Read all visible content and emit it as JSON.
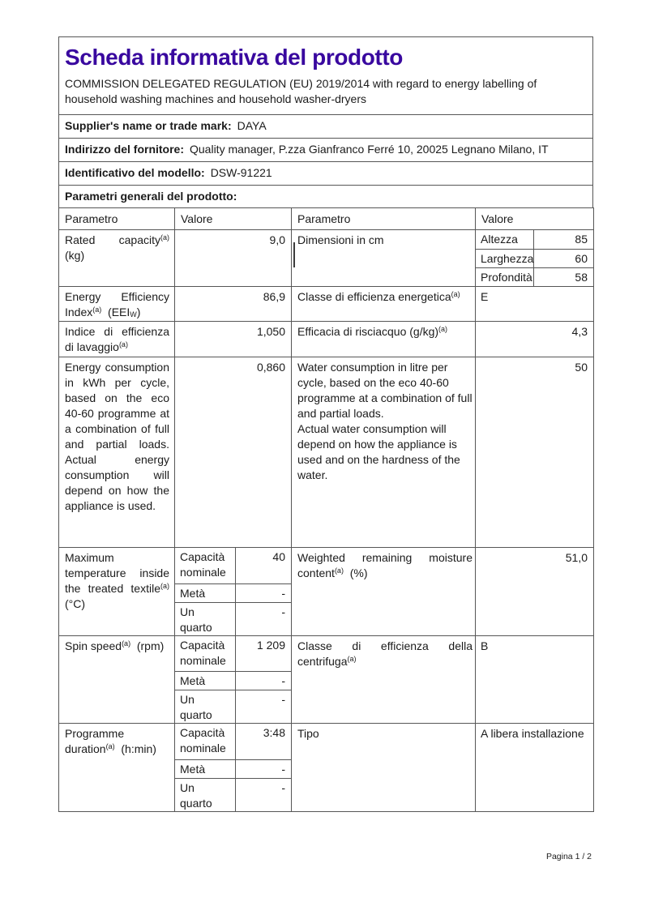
{
  "page": {
    "accent_color": "#39089f",
    "footer": "Pagina 1 / 2"
  },
  "header": {
    "title": "Scheda informativa del prodotto",
    "subtitle": "COMMISSION DELEGATED REGULATION (EU) 2019/2014 with regard to energy labelling of\nhousehold washing machines and household washer-dryers"
  },
  "info_rows": [
    {
      "label": "Supplier's name or trade mark:",
      "value": "DAYA"
    },
    {
      "label": "Indirizzo del fornitore:",
      "value": "Quality manager, P.zza Gianfranco Ferré 10, 20025 Legnano Milano, IT"
    },
    {
      "label": "Identificativo del modello:",
      "value": "DSW-91221"
    }
  ],
  "section_header": "Parametri generali del prodotto:",
  "table": {
    "column_headers": [
      "Parametro",
      "Valore",
      "Parametro",
      "Valore"
    ],
    "rows": [
      {
        "param1": "Rated capacity^{(a)} (kg)",
        "value1": "9,0",
        "param2": "Dimensioni in cm",
        "value2_rows": [
          {
            "label": "Altezza",
            "value": "85"
          },
          {
            "label": "Larghezza",
            "value": "60"
          },
          {
            "label": "Profondità",
            "value": "58"
          }
        ]
      },
      {
        "param1": "Energy Efficiency Index^{(a)}  (EEI_{W})",
        "value1": "86,9",
        "param2": "Classe di efficienza energetica^{(a)}",
        "value2": "E"
      },
      {
        "param1": "Indice di efficienza di lavaggio^{(a)}",
        "value1": "1,050",
        "param2": "Efficacia di risciacquo (g/kg)^{(a)}",
        "value2": "4,3"
      },
      {
        "param1": "Energy consumption in kWh per cycle, based on the eco 40-60 programme at a combination of full and partial loads. Actual energy consumption will depend on how the appliance is used.",
        "value1": "0,860",
        "param2": "Water consumption in litre per cycle, based on the eco 40-60 programme at a combination of full and partial loads.\nActual water consumption will depend on how the appliance is used and on the hardness of the water.",
        "value2": "50"
      },
      {
        "param1": "Maximum temperature inside the treated textile^{(a)} (°C)",
        "value1_rows": [
          {
            "label": "Capacità\nnominale",
            "value": "40"
          },
          {
            "label": "Metà",
            "value": "-"
          },
          {
            "label": "Un\nquarto",
            "value": "-"
          }
        ],
        "param2": "Weighted remaining moisture content^{(a)}  (%)",
        "value2": "51,0"
      },
      {
        "param1": "Spin speed^{(a)}  (rpm)",
        "value1_rows": [
          {
            "label": "Capacità\nnominale",
            "value": "1 209"
          },
          {
            "label": "Metà",
            "value": "-"
          },
          {
            "label": "Un\nquarto",
            "value": "-"
          }
        ],
        "param2": "Classe di efficienza della centrifuga^{(a)}",
        "value2": "B"
      },
      {
        "param1": "Programme duration^{(a)}  (h:min)",
        "value1_rows": [
          {
            "label": "Capacità\nnominale",
            "value": "3:48"
          },
          {
            "label": "Metà",
            "value": "-"
          },
          {
            "label": "Un\nquarto",
            "value": "-"
          }
        ],
        "param2": "Tipo",
        "value2": "A libera installazione"
      }
    ]
  }
}
